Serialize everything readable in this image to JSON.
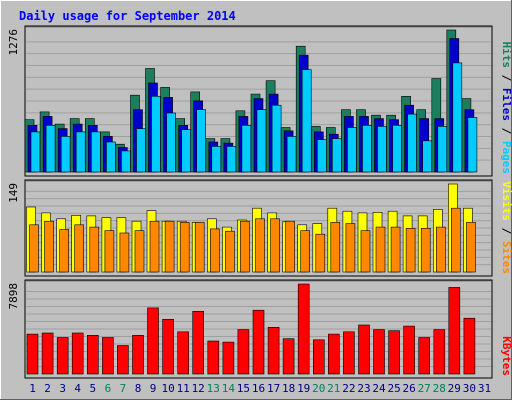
{
  "chart_data": {
    "type": "bar",
    "title": "Daily usage for September 2014",
    "categories": [
      "1",
      "2",
      "3",
      "4",
      "5",
      "6",
      "7",
      "8",
      "9",
      "10",
      "11",
      "12",
      "13",
      "14",
      "15",
      "16",
      "17",
      "18",
      "19",
      "20",
      "21",
      "22",
      "23",
      "24",
      "25",
      "26",
      "27",
      "28",
      "29",
      "30",
      "31"
    ],
    "weekend_days": [
      "6",
      "7",
      "13",
      "14",
      "20",
      "21",
      "27",
      "28"
    ],
    "panels": [
      {
        "axis_max_label": "1276",
        "ylim": [
          0,
          1276
        ],
        "legend": [
          "Pages",
          "Files",
          "Hits"
        ],
        "series": [
          {
            "name": "Hits",
            "color": "#1b7f5f",
            "values": [
              470,
              540,
              430,
              480,
              480,
              360,
              250,
              690,
              930,
              760,
              480,
              720,
              300,
              300,
              550,
              700,
              820,
              400,
              1130,
              410,
              400,
              560,
              560,
              510,
              510,
              680,
              560,
              840,
              1276,
              660,
              0
            ]
          },
          {
            "name": "Files",
            "color": "#0000cc",
            "values": [
              420,
              500,
              390,
              430,
              420,
              320,
              220,
              560,
              800,
              670,
              420,
              640,
              270,
              260,
              500,
              660,
              700,
              370,
              1050,
              360,
              340,
              500,
              500,
              480,
              470,
              600,
              480,
              480,
              1200,
              560,
              0
            ]
          },
          {
            "name": "Pages",
            "color": "#00ccff",
            "values": [
              360,
              420,
              320,
              360,
              360,
              270,
              190,
              390,
              680,
              530,
              380,
              560,
              230,
              230,
              420,
              560,
              600,
              320,
              920,
              290,
              300,
              400,
              420,
              410,
              420,
              520,
              280,
              410,
              980,
              490,
              0
            ]
          }
        ]
      },
      {
        "axis_max_label": "149",
        "ylim": [
          0,
          149
        ],
        "legend": [
          "Sites",
          "Visits"
        ],
        "series": [
          {
            "name": "Visits",
            "color": "#ffff00",
            "values": [
              110,
              100,
              90,
              96,
              95,
              92,
              92,
              86,
              104,
              86,
              86,
              84,
              90,
              76,
              88,
              108,
              100,
              85,
              80,
              82,
              108,
              103,
              100,
              101,
              103,
              95,
              95,
              106,
              149,
              108,
              0
            ]
          },
          {
            "name": "Sites",
            "color": "#ff8800",
            "values": [
              80,
              86,
              72,
              80,
              76,
              70,
              66,
              70,
              86,
              86,
              84,
              84,
              73,
              69,
              86,
              90,
              90,
              86,
              70,
              64,
              84,
              82,
              70,
              76,
              76,
              74,
              74,
              76,
              108,
              84,
              0
            ]
          }
        ]
      },
      {
        "axis_max_label": "7898",
        "ylim": [
          0,
          7898
        ],
        "legend": [
          "KBytes"
        ],
        "series": [
          {
            "name": "KBytes",
            "color": "#ff0000",
            "values": [
              3500,
              3600,
              3200,
              3600,
              3400,
              3200,
              2500,
              3400,
              5800,
              4800,
              3700,
              5500,
              2900,
              2800,
              3900,
              5600,
              4100,
              3100,
              7898,
              3000,
              3500,
              3700,
              4300,
              3900,
              3800,
              4200,
              3200,
              3900,
              7600,
              4900,
              0
            ]
          }
        ]
      }
    ]
  },
  "colors": {
    "background": "#c0c0c0",
    "panel": "#c0c0c0",
    "grid": "#a0a0a0",
    "title": "#0000ff",
    "day_weekday": "#000080",
    "day_weekend": "#00805a",
    "axis_text": "#000000"
  }
}
